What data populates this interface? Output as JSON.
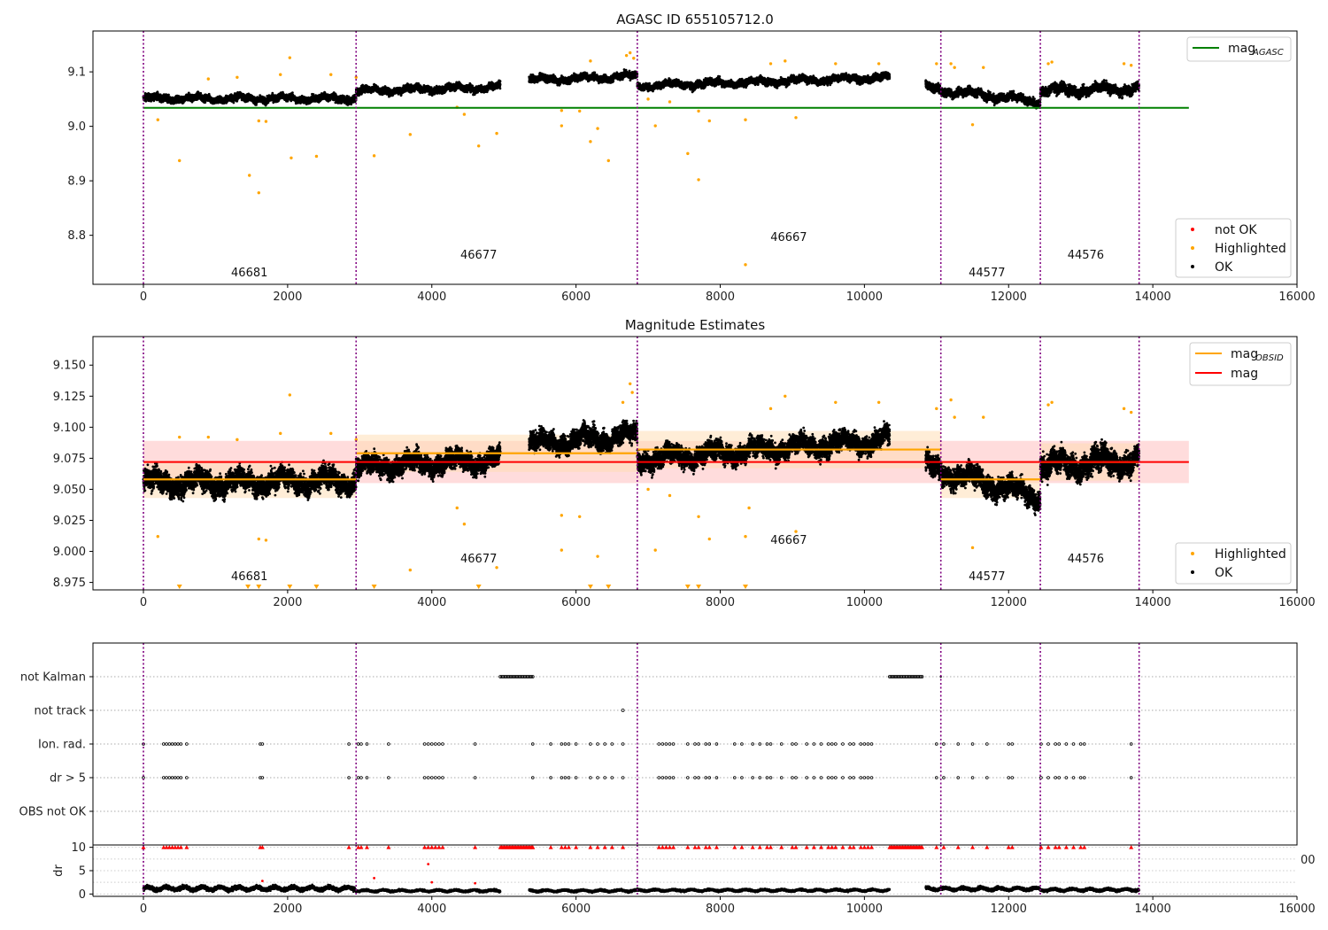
{
  "colors": {
    "ok": "#000000",
    "highlighted": "#ffa500",
    "not_ok": "#ff0000",
    "mag_agasc": "#008000",
    "mag_obsid": "#ffa500",
    "mag": "#ff0000",
    "obsid_boundary": "#800080",
    "mag_band": "#ffc0c0",
    "obsid_band": "#ffdcb0"
  },
  "chart_data": [
    {
      "type": "scatter",
      "title": "AGASC ID 655105712.0",
      "xlim": [
        -700,
        16000
      ],
      "ylim": [
        8.71,
        9.175
      ],
      "xticks": [
        "0",
        "2000",
        "4000",
        "6000",
        "8000",
        "10000",
        "12000",
        "14000",
        "16000"
      ],
      "yticks": [
        "8.8",
        "8.9",
        "9.0",
        "9.1"
      ],
      "legend_top": {
        "label": "mag",
        "sub": "AGASC",
        "position": "top-right"
      },
      "legend_bottom": {
        "items": [
          "not OK",
          "Highlighted",
          "OK"
        ],
        "position": "bottom-right"
      },
      "mag_agasc": {
        "value": 9.034,
        "x": [
          0,
          14500
        ]
      },
      "obsid_boundaries": [
        0,
        2950,
        6850,
        11060,
        12440,
        13810
      ],
      "obsid_labels": [
        {
          "text": "46681",
          "x": 1470,
          "y": 8.725
        },
        {
          "text": "46677",
          "x": 4650,
          "y": 8.757
        },
        {
          "text": "46667",
          "x": 8950,
          "y": 8.79
        },
        {
          "text": "44577",
          "x": 11700,
          "y": 8.725
        },
        {
          "text": "44576",
          "x": 13070,
          "y": 8.757
        }
      ],
      "ok_segments": [
        {
          "x": [
            0,
            2950
          ],
          "y": [
            9.051,
            9.051
          ],
          "spread": 0.01
        },
        {
          "x": [
            2950,
            4950
          ],
          "y": [
            9.065,
            9.072
          ],
          "spread": 0.01
        },
        {
          "x": [
            5350,
            6850
          ],
          "y": [
            9.085,
            9.092
          ],
          "spread": 0.01
        },
        {
          "x": [
            6850,
            10350
          ],
          "y": [
            9.074,
            9.09
          ],
          "spread": 0.01
        },
        {
          "x": [
            10850,
            12440
          ],
          "y": [
            9.07,
            9.045
          ],
          "spread": 0.012
        },
        {
          "x": [
            12440,
            13810
          ],
          "y": [
            9.065,
            9.07
          ],
          "spread": 0.014
        }
      ],
      "highlighted_points": [
        [
          200,
          9.012
        ],
        [
          500,
          8.937
        ],
        [
          900,
          9.087
        ],
        [
          1300,
          9.09
        ],
        [
          1470,
          8.91
        ],
        [
          1600,
          8.878
        ],
        [
          1600,
          9.01
        ],
        [
          1700,
          9.009
        ],
        [
          1900,
          9.095
        ],
        [
          2030,
          9.126
        ],
        [
          2050,
          8.942
        ],
        [
          2400,
          8.945
        ],
        [
          2600,
          9.095
        ],
        [
          2950,
          9.09
        ],
        [
          3200,
          8.946
        ],
        [
          3700,
          8.985
        ],
        [
          4350,
          9.035
        ],
        [
          4450,
          9.022
        ],
        [
          4650,
          8.964
        ],
        [
          4900,
          8.987
        ],
        [
          5800,
          9.029
        ],
        [
          5800,
          9.001
        ],
        [
          6050,
          9.028
        ],
        [
          6200,
          8.972
        ],
        [
          6300,
          8.996
        ],
        [
          6450,
          8.937
        ],
        [
          6200,
          9.12
        ],
        [
          6700,
          9.13
        ],
        [
          6750,
          9.135
        ],
        [
          6800,
          9.125
        ],
        [
          7000,
          9.05
        ],
        [
          7100,
          9.001
        ],
        [
          7300,
          9.045
        ],
        [
          7550,
          8.95
        ],
        [
          7700,
          8.902
        ],
        [
          7700,
          9.028
        ],
        [
          7850,
          9.01
        ],
        [
          8350,
          8.746
        ],
        [
          8350,
          9.012
        ],
        [
          8700,
          9.115
        ],
        [
          8900,
          9.12
        ],
        [
          9050,
          9.016
        ],
        [
          9600,
          9.115
        ],
        [
          10200,
          9.115
        ],
        [
          11000,
          9.115
        ],
        [
          11200,
          9.115
        ],
        [
          11250,
          9.108
        ],
        [
          11500,
          9.003
        ],
        [
          11650,
          9.108
        ],
        [
          12550,
          9.115
        ],
        [
          12600,
          9.118
        ],
        [
          13600,
          9.115
        ],
        [
          13700,
          9.112
        ]
      ]
    },
    {
      "type": "scatter",
      "title": "Magnitude Estimates",
      "xlim": [
        -700,
        16000
      ],
      "ylim": [
        8.969,
        9.173
      ],
      "xticks": [
        "0",
        "2000",
        "4000",
        "6000",
        "8000",
        "10000",
        "12000",
        "14000",
        "16000"
      ],
      "yticks": [
        "8.975",
        "9.000",
        "9.025",
        "9.050",
        "9.075",
        "9.100",
        "9.125",
        "9.150"
      ],
      "legend_top": {
        "items": [
          {
            "label": "mag",
            "sub": "OBSID"
          },
          {
            "label": "mag",
            "sub": ""
          }
        ],
        "position": "top-right"
      },
      "legend_bottom": {
        "items": [
          "Highlighted",
          "OK"
        ],
        "position": "bottom-right"
      },
      "mag": {
        "value": 9.072,
        "band": [
          9.055,
          9.089
        ],
        "x": [
          0,
          14500
        ]
      },
      "mag_obsid": [
        {
          "x": [
            0,
            2950
          ],
          "value": 9.058
        },
        {
          "x": [
            2950,
            6850
          ],
          "value": 9.079
        },
        {
          "x": [
            6850,
            11060
          ],
          "value": 9.082
        },
        {
          "x": [
            11060,
            12440
          ],
          "value": 9.058
        },
        {
          "x": [
            12440,
            13810
          ],
          "value": 9.072
        }
      ],
      "obsid_boundaries": [
        0,
        2950,
        6850,
        11060,
        12440,
        13810
      ],
      "obsid_labels": [
        {
          "text": "46681",
          "x": 1470,
          "y": 8.977
        },
        {
          "text": "46677",
          "x": 4650,
          "y": 8.991
        },
        {
          "text": "46667",
          "x": 8950,
          "y": 9.006
        },
        {
          "text": "44577",
          "x": 11700,
          "y": 8.977
        },
        {
          "text": "44576",
          "x": 13070,
          "y": 8.991
        }
      ],
      "ok_segments": [
        {
          "x": [
            0,
            2950
          ],
          "y": [
            9.055,
            9.057
          ],
          "spread": 0.013
        },
        {
          "x": [
            2950,
            4950
          ],
          "y": [
            9.068,
            9.074
          ],
          "spread": 0.012
        },
        {
          "x": [
            5350,
            6850
          ],
          "y": [
            9.086,
            9.094
          ],
          "spread": 0.012
        },
        {
          "x": [
            6850,
            10350
          ],
          "y": [
            9.074,
            9.09
          ],
          "spread": 0.012
        },
        {
          "x": [
            10850,
            12440
          ],
          "y": [
            9.068,
            9.044
          ],
          "spread": 0.013
        },
        {
          "x": [
            12440,
            13810
          ],
          "y": [
            9.068,
            9.074
          ],
          "spread": 0.015
        }
      ],
      "highlighted_points": [
        [
          200,
          9.012
        ],
        [
          500,
          9.092
        ],
        [
          900,
          9.092
        ],
        [
          1300,
          9.09
        ],
        [
          1600,
          9.01
        ],
        [
          1700,
          9.009
        ],
        [
          1900,
          9.095
        ],
        [
          2030,
          9.126
        ],
        [
          2600,
          9.095
        ],
        [
          2950,
          9.09
        ],
        [
          3700,
          8.985
        ],
        [
          4350,
          9.035
        ],
        [
          4450,
          9.022
        ],
        [
          4900,
          8.987
        ],
        [
          5800,
          9.029
        ],
        [
          5800,
          9.001
        ],
        [
          6050,
          9.028
        ],
        [
          6300,
          8.996
        ],
        [
          6650,
          9.12
        ],
        [
          6750,
          9.135
        ],
        [
          6780,
          9.128
        ],
        [
          7000,
          9.05
        ],
        [
          7100,
          9.001
        ],
        [
          7300,
          9.045
        ],
        [
          7700,
          9.028
        ],
        [
          7850,
          9.01
        ],
        [
          8350,
          9.012
        ],
        [
          8400,
          9.035
        ],
        [
          8700,
          9.115
        ],
        [
          8900,
          9.125
        ],
        [
          9050,
          9.016
        ],
        [
          9600,
          9.12
        ],
        [
          10200,
          9.12
        ],
        [
          11000,
          9.115
        ],
        [
          11200,
          9.122
        ],
        [
          11250,
          9.108
        ],
        [
          11500,
          9.003
        ],
        [
          11650,
          9.108
        ],
        [
          12550,
          9.118
        ],
        [
          12600,
          9.12
        ],
        [
          13600,
          9.115
        ],
        [
          13700,
          9.112
        ]
      ],
      "highlighted_floor_markers": [
        500,
        1450,
        1600,
        2030,
        2400,
        3200,
        4650,
        6200,
        6450,
        7550,
        7700,
        8350
      ]
    },
    {
      "type": "scatter",
      "title": "",
      "xlim": [
        -700,
        16000
      ],
      "flag_rows": [
        "not Kalman",
        "not track",
        "Ion. rad.",
        "dr > 5",
        "OBS not OK"
      ],
      "not_kalman_ranges": [
        [
          4950,
          5400
        ],
        [
          10350,
          10800
        ]
      ],
      "not_track_points": [
        6650
      ],
      "flag_points": [
        0,
        280,
        320,
        360,
        400,
        440,
        480,
        520,
        600,
        1620,
        1650,
        2850,
        2980,
        3020,
        3100,
        3400,
        3900,
        3950,
        4000,
        4050,
        4100,
        4150,
        4600,
        5400,
        5650,
        5800,
        5850,
        5900,
        6000,
        6200,
        6300,
        6400,
        6500,
        6650,
        7150,
        7200,
        7250,
        7300,
        7350,
        7550,
        7650,
        7700,
        7800,
        7850,
        7950,
        8200,
        8300,
        8450,
        8550,
        8650,
        8700,
        8850,
        9000,
        9050,
        9200,
        9300,
        9400,
        9500,
        9550,
        9600,
        9700,
        9800,
        9850,
        9950,
        10000,
        10050,
        10100,
        11000,
        11100,
        11300,
        11500,
        11700,
        12000,
        12050,
        12450,
        12550,
        12650,
        12700,
        12800,
        12900,
        13000,
        13050,
        13700
      ],
      "obsid_boundaries": [
        0,
        2950,
        6850,
        11060,
        12440,
        13810
      ]
    },
    {
      "type": "scatter",
      "title": "",
      "xlim": [
        -700,
        16000
      ],
      "ylim": [
        -0.5,
        10.5
      ],
      "xticks": [
        "0",
        "2000",
        "4000",
        "6000",
        "8000",
        "10000",
        "12000",
        "14000",
        "16000"
      ],
      "yticks": [
        "0",
        "5",
        "10"
      ],
      "ylabel": "dr",
      "overflow_tick": "00",
      "dr_segments": [
        {
          "x": [
            0,
            2950
          ],
          "y": 1.2,
          "spread": 0.8
        },
        {
          "x": [
            2950,
            4950
          ],
          "y": 0.7,
          "spread": 0.4
        },
        {
          "x": [
            5350,
            6850
          ],
          "y": 0.7,
          "spread": 0.4
        },
        {
          "x": [
            6850,
            10350
          ],
          "y": 0.8,
          "spread": 0.4
        },
        {
          "x": [
            10850,
            12440
          ],
          "y": 1.1,
          "spread": 0.6
        },
        {
          "x": [
            12440,
            13810
          ],
          "y": 0.9,
          "spread": 0.5
        }
      ],
      "dr_outliers": [
        [
          1650,
          2.8
        ],
        [
          3200,
          3.4
        ],
        [
          3950,
          6.4
        ],
        [
          4000,
          2.5
        ],
        [
          4600,
          2.3
        ]
      ],
      "dr_capped_ranges": [
        [
          4950,
          5400
        ],
        [
          10350,
          10800
        ]
      ],
      "obsid_boundaries": [
        0,
        2950,
        6850,
        11060,
        12440,
        13810
      ]
    }
  ]
}
